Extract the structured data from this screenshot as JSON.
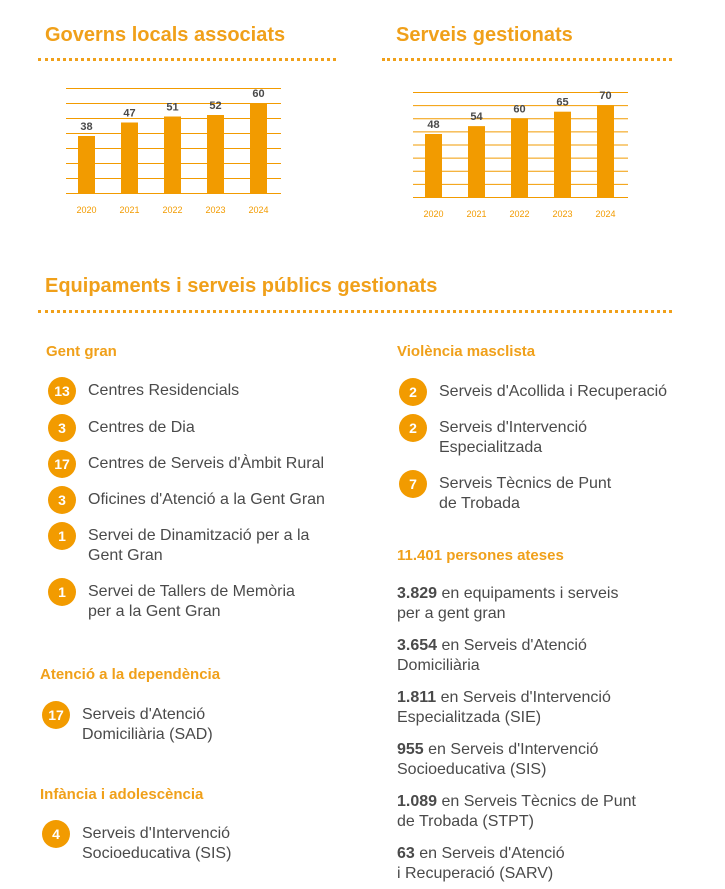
{
  "governs": {
    "title": "Governs locals associats"
  },
  "serveis": {
    "title": "Serveis gestionats"
  },
  "chart_data": [
    {
      "type": "bar",
      "title": "Governs locals associats",
      "categories": [
        "2020",
        "2021",
        "2022",
        "2023",
        "2024"
      ],
      "values": [
        38,
        47,
        51,
        52,
        60
      ],
      "ylim": [
        0,
        70
      ]
    },
    {
      "type": "bar",
      "title": "Serveis gestionats",
      "categories": [
        "2020",
        "2021",
        "2022",
        "2023",
        "2024"
      ],
      "values": [
        48,
        54,
        60,
        65,
        70
      ],
      "ylim": [
        0,
        80
      ]
    }
  ],
  "equipaments": {
    "title": "Equipaments i serveis públics gestionats"
  },
  "gent_gran": {
    "heading": "Gent gran",
    "items": [
      {
        "count": "13",
        "lines": [
          "Centres Residencials"
        ]
      },
      {
        "count": "3",
        "lines": [
          "Centres de Dia"
        ]
      },
      {
        "count": "17",
        "lines": [
          "Centres de Serveis d'Àmbit Rural"
        ]
      },
      {
        "count": "3",
        "lines": [
          "Oficines d'Atenció a la Gent Gran"
        ]
      },
      {
        "count": "1",
        "lines": [
          "Servei de Dinamització per a la",
          "Gent Gran"
        ]
      },
      {
        "count": "1",
        "lines": [
          "Servei de Tallers de Memòria",
          "per a la Gent Gran"
        ]
      }
    ]
  },
  "dependencia": {
    "heading": "Atenció a la dependència",
    "items": [
      {
        "count": "17",
        "lines": [
          "Serveis d'Atenció",
          "Domiciliària (SAD)"
        ]
      }
    ]
  },
  "infancia": {
    "heading": "Infància i adolescència",
    "items": [
      {
        "count": "4",
        "lines": [
          "Serveis d'Intervenció",
          "Socioeducativa (SIS)"
        ]
      }
    ]
  },
  "violencia": {
    "heading": "Violència masclista",
    "items": [
      {
        "count": "2",
        "lines": [
          "Serveis d'Acollida i Recuperació"
        ]
      },
      {
        "count": "2",
        "lines": [
          "Serveis d'Intervenció",
          "Especialitzada"
        ]
      },
      {
        "count": "7",
        "lines": [
          "Serveis Tècnics de Punt",
          "de Trobada"
        ]
      }
    ]
  },
  "ateses": {
    "heading": "11.401 persones ateses",
    "items": [
      {
        "num": "3.829",
        "line1": " en equipaments i serveis",
        "line2": "per a gent gran"
      },
      {
        "num": "3.654",
        "line1": " en Serveis d'Atenció",
        "line2": "Domiciliària"
      },
      {
        "num": "1.811",
        "line1": " en Serveis d'Intervenció",
        "line2": "Especialitzada (SIE)"
      },
      {
        "num": "955",
        "line1": " en Serveis d'Intervenció",
        "line2": "Socioeducativa (SIS)"
      },
      {
        "num": "1.089",
        "line1": " en Serveis Tècnics de Punt",
        "line2": "de Trobada (STPT)"
      },
      {
        "num": "63",
        "line1": " en Serveis d'Atenció",
        "line2": "i Recuperació (SARV)"
      }
    ]
  },
  "colors": {
    "accent": "#f29b00",
    "text": "#4a4a4a"
  }
}
